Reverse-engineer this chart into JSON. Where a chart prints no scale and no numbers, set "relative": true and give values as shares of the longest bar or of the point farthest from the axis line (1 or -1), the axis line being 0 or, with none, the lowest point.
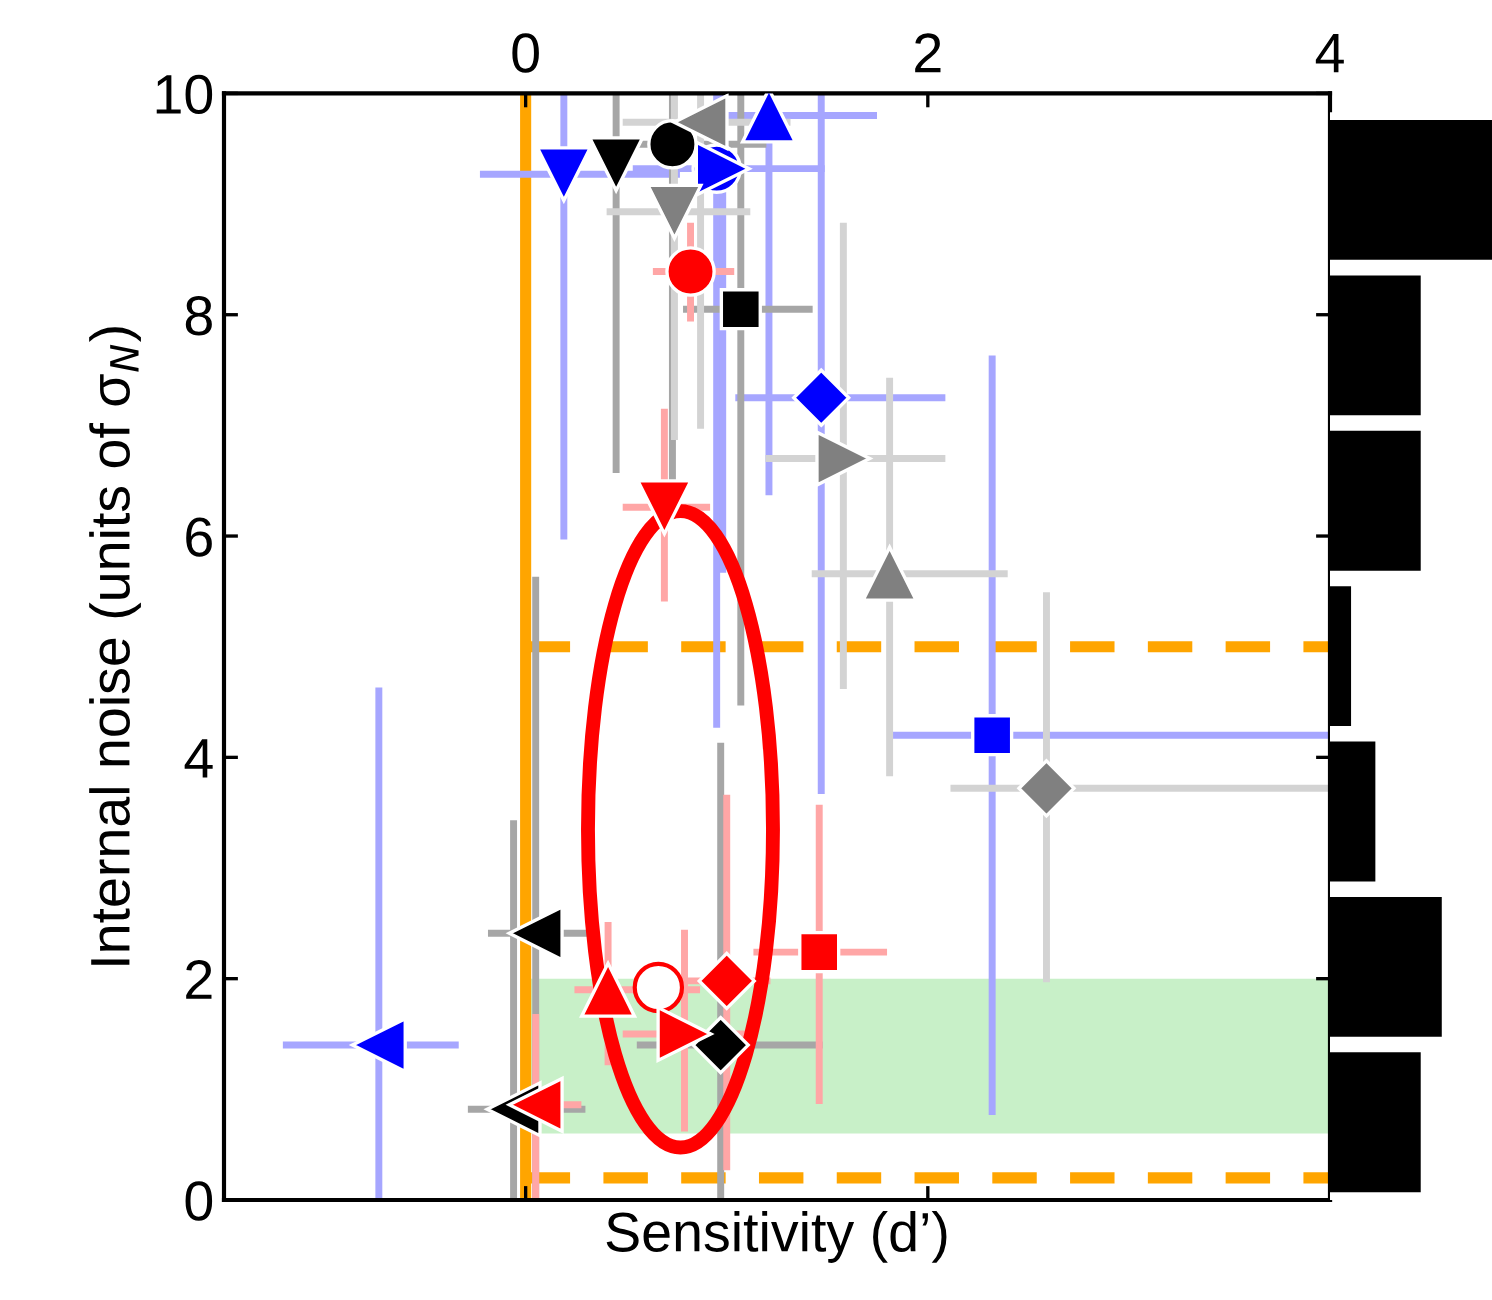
{
  "chart_data": [
    {
      "type": "scatter",
      "xlabel": "Sensitivity (d’)",
      "ylabel": "Internal noise (units of σ$_{N}$)",
      "xlim": [
        -1.5,
        4
      ],
      "ylim": [
        0,
        10
      ],
      "xticks": [
        0,
        2,
        4
      ],
      "yticks": [
        0,
        2,
        4,
        6,
        8,
        10
      ],
      "grid": false,
      "legend": false,
      "ref_lines": [
        {
          "axis": "x",
          "value": 0,
          "color": "#ffa500",
          "line_style": "solid"
        },
        {
          "axis": "y",
          "value": 5,
          "color": "#ffa500",
          "line_style": "dashed"
        },
        {
          "axis": "y",
          "value": 0.2,
          "color": "#ffa500",
          "line_style": "dashed"
        }
      ],
      "bands": [
        {
          "axis": "y",
          "from": 0.6,
          "to": 2.0,
          "color": "#c8f0c8"
        }
      ],
      "series": [
        {
          "type": "scatter",
          "color": "#0000ff",
          "marker": "triangle_down",
          "x": [
            0.19
          ],
          "values": [
            9.27
          ],
          "xerrors": [
            [
              -0.21,
              0.75
            ]
          ],
          "errors": [
            [
              6.0,
              10
            ]
          ]
        },
        {
          "type": "scatter",
          "color": "#0000ff",
          "marker": "triangle",
          "x": [
            1.21
          ],
          "values": [
            9.8
          ],
          "xerrors": [
            [
              0.85,
              1.73
            ]
          ],
          "errors": [
            [
              6.4,
              10
            ]
          ]
        },
        {
          "type": "scatter",
          "color": "#0000ff",
          "marker": "circle",
          "x": [
            0.95
          ],
          "values": [
            9.32
          ],
          "xerrors": [
            null
          ],
          "errors": [
            [
              4.3,
              10
            ]
          ]
        },
        {
          "type": "scatter",
          "color": "#0000ff",
          "marker": "triangle_right",
          "x": [
            0.98
          ],
          "values": [
            9.32
          ],
          "xerrors": [
            [
              0.55,
              1.47
            ]
          ],
          "errors": [
            [
              5.7,
              10
            ]
          ]
        },
        {
          "type": "scatter",
          "color": "#0000ff",
          "marker": "diamond",
          "x": [
            1.47
          ],
          "values": [
            7.25
          ],
          "xerrors": [
            [
              1.06,
              2.07
            ]
          ],
          "errors": [
            [
              3.7,
              10
            ]
          ]
        },
        {
          "type": "scatter",
          "color": "#0000ff",
          "marker": "square",
          "x": [
            2.32
          ],
          "values": [
            4.2
          ],
          "xerrors": [
            [
              1.82,
              4
            ]
          ],
          "errors": [
            [
              0.8,
              7.6
            ]
          ]
        },
        {
          "type": "scatter",
          "color": "#0000ff",
          "marker": "triangle_left",
          "x": [
            -0.73
          ],
          "values": [
            1.4
          ],
          "xerrors": [
            [
              -1.19,
              -0.35
            ]
          ],
          "errors": [
            [
              0,
              4.6
            ]
          ]
        },
        {
          "type": "scatter",
          "color": "#000000",
          "marker": "circle",
          "x": [
            0.73
          ],
          "values": [
            9.54
          ],
          "xerrors": [
            [
              0.56,
              1.18
            ]
          ],
          "errors": [
            [
              6.5,
              10
            ]
          ]
        },
        {
          "type": "scatter",
          "color": "#000000",
          "marker": "triangle_down",
          "x": [
            0.45
          ],
          "values": [
            9.36
          ],
          "xerrors": [
            null
          ],
          "errors": [
            [
              6.6,
              10
            ]
          ]
        },
        {
          "type": "scatter",
          "color": "#000000",
          "marker": "square",
          "x": [
            1.07
          ],
          "values": [
            8.05
          ],
          "xerrors": [
            [
              0.8,
              1.41
            ]
          ],
          "errors": [
            [
              4.5,
              10
            ]
          ]
        },
        {
          "type": "scatter",
          "color": "#000000",
          "marker": "triangle_left",
          "x": [
            0.05,
            -0.06
          ],
          "values": [
            2.41,
            0.82
          ],
          "xerrors": [
            [
              -0.17,
              0.31
            ],
            [
              -0.27,
              0.28
            ]
          ],
          "errors": [
            [
              0,
              5.6
            ],
            [
              0,
              3.4
            ]
          ]
        },
        {
          "type": "scatter",
          "color": "#000000",
          "marker": "diamond",
          "x": [
            0.97
          ],
          "values": [
            1.4
          ],
          "xerrors": [
            [
              0.57,
              1.46
            ]
          ],
          "errors": [
            [
              0,
              4.1
            ]
          ]
        },
        {
          "type": "scatter",
          "color": "#808080",
          "marker": "triangle_left",
          "x": [
            0.87
          ],
          "values": [
            9.74
          ],
          "xerrors": [
            [
              0.5,
              1.3
            ]
          ],
          "errors": [
            [
              7.0,
              10
            ]
          ]
        },
        {
          "type": "scatter",
          "color": "#808080",
          "marker": "triangle_down",
          "x": [
            0.74
          ],
          "values": [
            8.93
          ],
          "xerrors": [
            [
              0.42,
              1.1
            ]
          ],
          "errors": [
            [
              6.9,
              10
            ]
          ]
        },
        {
          "type": "scatter",
          "color": "#808080",
          "marker": "triangle_right",
          "x": [
            1.58
          ],
          "values": [
            6.7
          ],
          "xerrors": [
            [
              1.21,
              2.07
            ]
          ],
          "errors": [
            [
              4.65,
              8.8
            ]
          ]
        },
        {
          "type": "scatter",
          "color": "#808080",
          "marker": "triangle",
          "x": [
            1.81
          ],
          "values": [
            5.66
          ],
          "xerrors": [
            [
              1.44,
              2.38
            ]
          ],
          "errors": [
            [
              3.86,
              7.4
            ]
          ]
        },
        {
          "type": "scatter",
          "color": "#808080",
          "marker": "diamond",
          "x": [
            2.59
          ],
          "values": [
            3.72
          ],
          "xerrors": [
            [
              2.13,
              4
            ]
          ],
          "errors": [
            [
              2.0,
              5.46
            ]
          ]
        },
        {
          "type": "scatter",
          "color": "#ff0000",
          "marker": "circle",
          "x": [
            0.82
          ],
          "values": [
            8.39
          ],
          "xerrors": [
            [
              0.65,
              1.02
            ]
          ],
          "errors": [
            [
              7.97,
              8.8
            ]
          ]
        },
        {
          "type": "scatter",
          "color": "#ff0000",
          "marker": "triangle_down",
          "x": [
            0.69
          ],
          "values": [
            6.26
          ],
          "xerrors": [
            [
              0.5,
              0.9
            ]
          ],
          "errors": [
            [
              5.44,
              7.12
            ]
          ]
        },
        {
          "type": "scatter",
          "color": "#ff0000",
          "marker": "square",
          "x": [
            1.46
          ],
          "values": [
            2.24
          ],
          "xerrors": [
            [
              1.15,
              1.78
            ]
          ],
          "errors": [
            [
              0.9,
              3.54
            ]
          ]
        },
        {
          "type": "scatter",
          "color": "#ff0000",
          "marker": "diamond",
          "x": [
            1.0
          ],
          "values": [
            1.98
          ],
          "xerrors": [
            [
              0.8,
              1.2
            ]
          ],
          "errors": [
            [
              0.3,
              3.63
            ]
          ]
        },
        {
          "type": "scatter",
          "color": "#ff0000",
          "marker": "triangle",
          "x": [
            0.41
          ],
          "values": [
            1.9
          ],
          "xerrors": [
            [
              0.26,
              0.85
            ]
          ],
          "errors": [
            [
              1.25,
              2.48
            ]
          ]
        },
        {
          "type": "scatter",
          "color": "#ff0000",
          "marker": "open_circle",
          "x": [
            0.66
          ],
          "values": [
            1.92
          ]
        },
        {
          "type": "scatter",
          "color": "#ff0000",
          "marker": "triangle_right",
          "x": [
            0.79
          ],
          "values": [
            1.5
          ],
          "xerrors": [
            [
              0.5,
              1.12
            ]
          ],
          "errors": [
            [
              0.65,
              2.41
            ]
          ]
        },
        {
          "type": "scatter",
          "color": "#ff0000",
          "marker": "triangle_left",
          "x": [
            0.05
          ],
          "values": [
            0.86
          ],
          "xerrors": [
            [
              -0.1,
              0.26
            ]
          ],
          "errors": [
            [
              0,
              1.65
            ]
          ]
        }
      ]
    },
    {
      "type": "bar",
      "orientation": "horizontal",
      "relative": true,
      "categories": [
        null,
        null,
        null,
        null,
        null,
        null,
        null
      ],
      "values": [
        1,
        0.56,
        0.56,
        0.13,
        0.28,
        0.69,
        0.56
      ],
      "color": "#000000"
    }
  ]
}
